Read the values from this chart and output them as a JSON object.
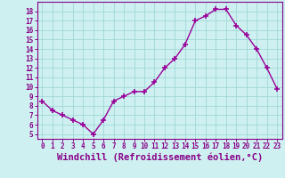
{
  "x": [
    0,
    1,
    2,
    3,
    4,
    5,
    6,
    7,
    8,
    9,
    10,
    11,
    12,
    13,
    14,
    15,
    16,
    17,
    18,
    19,
    20,
    21,
    22,
    23
  ],
  "y": [
    8.5,
    7.5,
    7.0,
    6.5,
    6.0,
    5.0,
    6.5,
    8.5,
    9.0,
    9.5,
    9.5,
    10.5,
    12.0,
    13.0,
    14.5,
    17.0,
    17.5,
    18.2,
    18.2,
    16.5,
    15.5,
    14.0,
    12.0,
    9.8
  ],
  "line_color": "#990099",
  "marker": "+",
  "marker_size": 4,
  "marker_linewidth": 1.2,
  "line_width": 1.0,
  "xlabel": "Windchill (Refroidissement éolien,°C)",
  "xlabel_fontsize": 7.5,
  "bg_color": "#cef0f0",
  "grid_color": "#a0d8d8",
  "tick_color": "#880088",
  "label_color": "#880088",
  "ylim": [
    4.5,
    19.0
  ],
  "xlim": [
    -0.5,
    23.5
  ],
  "yticks": [
    5,
    6,
    7,
    8,
    9,
    10,
    11,
    12,
    13,
    14,
    15,
    16,
    17,
    18
  ],
  "xticks": [
    0,
    1,
    2,
    3,
    4,
    5,
    6,
    7,
    8,
    9,
    10,
    11,
    12,
    13,
    14,
    15,
    16,
    17,
    18,
    19,
    20,
    21,
    22,
    23
  ]
}
